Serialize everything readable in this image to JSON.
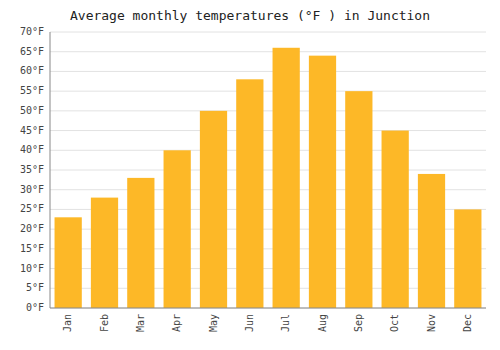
{
  "chart_data": {
    "type": "bar",
    "title": "Average monthly temperatures (°F ) in Junction",
    "categories": [
      "Jan",
      "Feb",
      "Mar",
      "Apr",
      "May",
      "Jun",
      "Jul",
      "Aug",
      "Sep",
      "Oct",
      "Nov",
      "Dec"
    ],
    "values": [
      23,
      28,
      33,
      40,
      50,
      58,
      66,
      64,
      55,
      45,
      34,
      25
    ],
    "color": "#FDB827",
    "ylim": [
      0,
      70
    ],
    "yticks": [
      {
        "value": 0,
        "label": "0°F"
      },
      {
        "value": 5,
        "label": "5°F"
      },
      {
        "value": 10,
        "label": "10°F"
      },
      {
        "value": 15,
        "label": "15°F"
      },
      {
        "value": 20,
        "label": "20°F"
      },
      {
        "value": 25,
        "label": "25°F"
      },
      {
        "value": 30,
        "label": "30°F"
      },
      {
        "value": 35,
        "label": "35°F"
      },
      {
        "value": 40,
        "label": "40°F"
      },
      {
        "value": 45,
        "label": "45°F"
      },
      {
        "value": 50,
        "label": "50°F"
      },
      {
        "value": 55,
        "label": "55°F"
      },
      {
        "value": 60,
        "label": "60°F"
      },
      {
        "value": 65,
        "label": "65°F"
      },
      {
        "value": 70,
        "label": "70°F"
      }
    ],
    "grid": true
  }
}
